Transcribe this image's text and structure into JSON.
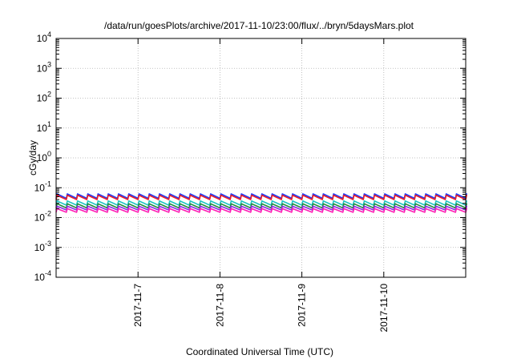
{
  "chart_data": {
    "type": "line",
    "title": "/data/run/goesPlots/archive/2017-11-10/23:00/flux/../bryn/5daysMars.plot",
    "xlabel": "Coordinated Universal Time (UTC)",
    "ylabel": "cGy/day",
    "yscale": "log",
    "ylim": [
      0.0001,
      10000
    ],
    "y_ticks": [
      {
        "value": 0.0001,
        "base": "10",
        "exp": "-4"
      },
      {
        "value": 0.001,
        "base": "10",
        "exp": "-3"
      },
      {
        "value": 0.01,
        "base": "10",
        "exp": "-2"
      },
      {
        "value": 0.1,
        "base": "10",
        "exp": "-1"
      },
      {
        "value": 1,
        "base": "10",
        "exp": "0"
      },
      {
        "value": 10,
        "base": "10",
        "exp": "1"
      },
      {
        "value": 100,
        "base": "10",
        "exp": "2"
      },
      {
        "value": 1000,
        "base": "10",
        "exp": "3"
      },
      {
        "value": 10000,
        "base": "10",
        "exp": "4"
      }
    ],
    "xlim": [
      "2017-11-06T00:00",
      "2017-11-11T00:00"
    ],
    "x_ticks": [
      "2017-11-7",
      "2017-11-8",
      "2017-11-9",
      "2017-11-10"
    ],
    "grid": true,
    "sawtooth_period_hours": 3,
    "series": [
      {
        "color": "#1a3bff",
        "peak": 0.062,
        "trough": 0.044
      },
      {
        "color": "#e8202a",
        "peak": 0.056,
        "trough": 0.04
      },
      {
        "color": "#1fc4c4",
        "peak": 0.036,
        "trough": 0.026
      },
      {
        "color": "#1f8a3a",
        "peak": 0.029,
        "trough": 0.021
      },
      {
        "color": "#8a2be2",
        "peak": 0.024,
        "trough": 0.018
      },
      {
        "color": "#ff1fb4",
        "peak": 0.02,
        "trough": 0.015
      }
    ]
  }
}
